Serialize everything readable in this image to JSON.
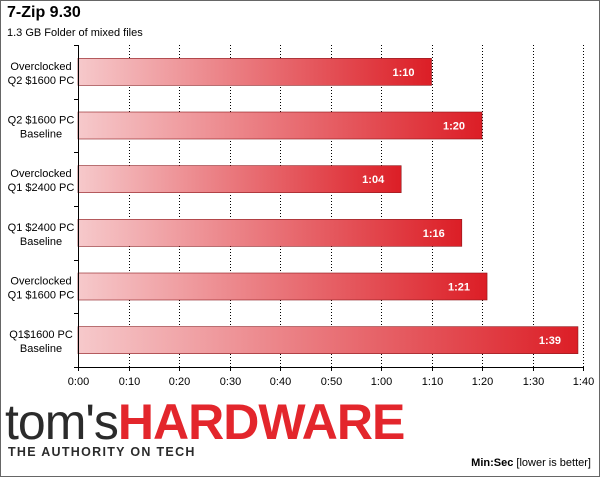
{
  "chart_data": {
    "type": "bar",
    "orientation": "horizontal",
    "title": "7-Zip 9.30",
    "subtitle": "1.3 GB Folder of mixed files",
    "categories": [
      [
        "Overclocked",
        "Q2 $1600 PC"
      ],
      [
        "Q2 $1600 PC",
        "Baseline"
      ],
      [
        "Overclocked",
        "Q1 $2400 PC"
      ],
      [
        "Q1 $2400 PC",
        "Baseline"
      ],
      [
        "Overclocked",
        "Q1 $1600 PC"
      ],
      [
        "Q1$1600 PC",
        "Baseline"
      ]
    ],
    "values": [
      70,
      80,
      64,
      76,
      81,
      99
    ],
    "value_labels": [
      "1:10",
      "1:20",
      "1:04",
      "1:16",
      "1:21",
      "1:39"
    ],
    "xlim": [
      0,
      100
    ],
    "xticks": [
      0,
      10,
      20,
      30,
      40,
      50,
      60,
      70,
      80,
      90,
      100
    ],
    "xtick_labels": [
      "0:00",
      "0:10",
      "0:20",
      "0:30",
      "0:40",
      "0:50",
      "1:00",
      "1:10",
      "1:20",
      "1:30",
      "1:40"
    ],
    "grid": true,
    "unit_label": "Min:Sec",
    "unit_note": "[lower is better]",
    "colors": {
      "bar_start": "#f6c9cb",
      "bar_end": "#dc1e26",
      "grid": "#000000",
      "value_text": "#ffffff"
    }
  },
  "branding": {
    "logo_part1": "tom's",
    "logo_part2": "HARDWARE",
    "tagline": "THE AUTHORITY ON TECH"
  }
}
